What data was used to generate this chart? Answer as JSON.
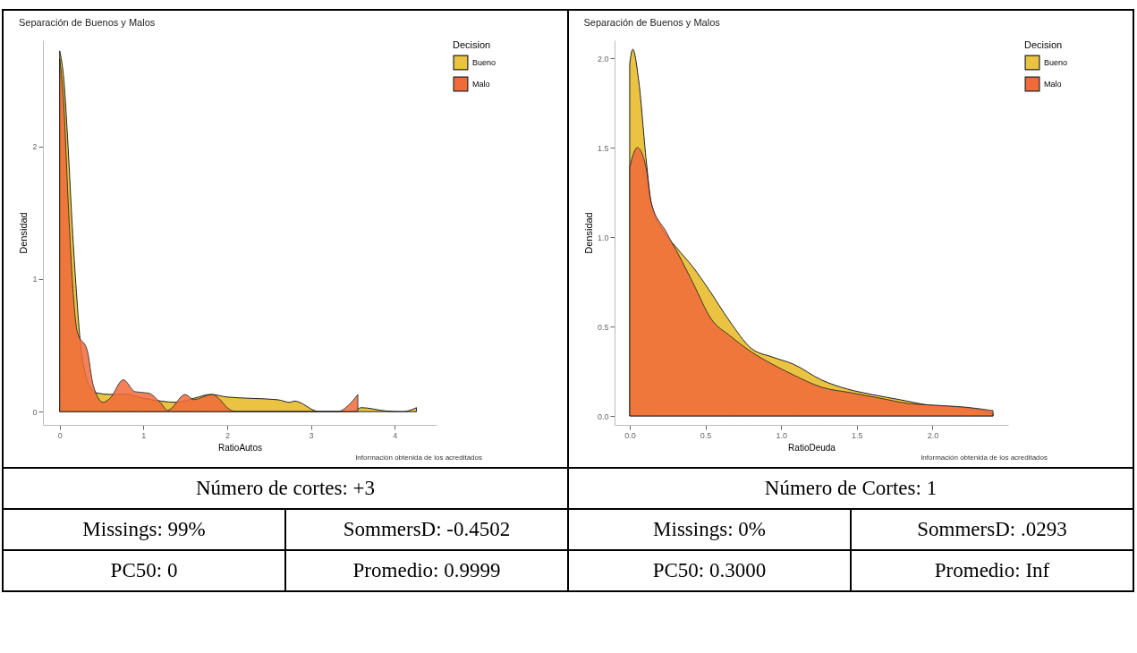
{
  "chart_data": [
    {
      "type": "area",
      "title": "Separación de Buenos y Malos",
      "xlabel": "RatioAutos",
      "ylabel": "Densidad",
      "legend_title": "Decision",
      "legend": "right",
      "grid": false,
      "xlim": [
        -0.2,
        4.5
      ],
      "xticks": [
        0,
        1,
        2,
        3,
        4
      ],
      "ylim": [
        -0.1,
        2.8
      ],
      "yticks": [
        0,
        1,
        2
      ],
      "series": [
        {
          "name": "Bueno",
          "color": "#e9c341",
          "x": [
            0,
            0.05,
            0.1,
            0.15,
            0.2,
            0.25,
            0.3,
            0.35,
            0.45,
            0.6,
            0.8,
            1.0,
            1.2,
            1.4,
            1.6,
            1.8,
            2.0,
            2.3,
            2.6,
            2.75,
            2.8,
            2.9,
            3.0,
            3.1,
            3.5,
            3.6,
            3.9,
            4.1,
            4.26
          ],
          "values": [
            2.72,
            2.5,
            2.0,
            1.4,
            0.9,
            0.5,
            0.3,
            0.2,
            0.14,
            0.13,
            0.13,
            0.1,
            0.08,
            0.07,
            0.1,
            0.13,
            0.11,
            0.1,
            0.09,
            0.07,
            0.08,
            0.06,
            0.02,
            0.0,
            0.0,
            0.03,
            0.005,
            0.0,
            0.03
          ]
        },
        {
          "name": "Malo",
          "color": "#f26a3a",
          "x": [
            0,
            0.05,
            0.1,
            0.15,
            0.21,
            0.33,
            0.4,
            0.52,
            0.6,
            0.76,
            0.9,
            1.06,
            1.2,
            1.29,
            1.5,
            1.6,
            1.82,
            1.9,
            2.0,
            2.1,
            3.0,
            3.32,
            3.45,
            3.56
          ],
          "values": [
            2.66,
            2.3,
            1.6,
            1.0,
            0.6,
            0.46,
            0.2,
            0.07,
            0.1,
            0.24,
            0.15,
            0.14,
            0.07,
            0.01,
            0.13,
            0.09,
            0.13,
            0.1,
            0.03,
            0.0,
            0.0,
            0.0,
            0.05,
            0.13
          ]
        }
      ],
      "annotations": [
        "Información obtenida de los acreditados",
        "Número de cortes: +3",
        "Missings: 99%",
        "SommersD: -0.4502",
        "PC50: 0",
        "Promedio: 0.9999"
      ]
    },
    {
      "type": "area",
      "title": "Separación de Buenos y Malos",
      "xlabel": "RatioDeuda",
      "ylabel": "Densidad",
      "legend_title": "Decision",
      "legend": "right",
      "grid": false,
      "xlim": [
        -0.1,
        2.5
      ],
      "xticks": [
        {
          "value": 0,
          "label": "0.0"
        },
        0.5,
        {
          "value": 1,
          "label": "1.0"
        },
        1.5,
        {
          "value": 2,
          "label": "2.0"
        }
      ],
      "ylim": [
        -0.05,
        2.1
      ],
      "yticks": [
        {
          "value": 0,
          "label": "0.0"
        },
        0.5,
        {
          "value": 1,
          "label": "1.0"
        },
        1.5,
        {
          "value": 2,
          "label": "2.0"
        }
      ],
      "series": [
        {
          "name": "Bueno",
          "color": "#e9c341",
          "x": [
            0,
            0.02,
            0.06,
            0.11,
            0.14,
            0.21,
            0.31,
            0.42,
            0.52,
            0.66,
            0.8,
            0.94,
            1.08,
            1.27,
            1.44,
            1.6,
            1.79,
            1.98,
            2.16,
            2.28,
            2.4
          ],
          "values": [
            1.97,
            2.05,
            1.87,
            1.42,
            1.2,
            1.05,
            0.94,
            0.83,
            0.71,
            0.53,
            0.38,
            0.33,
            0.29,
            0.2,
            0.15,
            0.12,
            0.09,
            0.06,
            0.05,
            0.04,
            0.015
          ]
        },
        {
          "name": "Malo",
          "color": "#f26a3a",
          "x": [
            0,
            0.05,
            0.11,
            0.14,
            0.24,
            0.33,
            0.42,
            0.54,
            0.66,
            0.8,
            0.94,
            1.08,
            1.27,
            1.46,
            1.65,
            1.84,
            2.02,
            2.21,
            2.4
          ],
          "values": [
            1.39,
            1.5,
            1.38,
            1.2,
            1.03,
            0.89,
            0.74,
            0.54,
            0.45,
            0.36,
            0.29,
            0.23,
            0.16,
            0.13,
            0.1,
            0.07,
            0.06,
            0.05,
            0.03
          ]
        }
      ],
      "annotations": [
        "Información obtenida de los acreditados",
        "Número de Cortes: 1",
        "Missings: 0%",
        "SommersD: .0293",
        "PC50: 0.3000",
        "Promedio: Inf"
      ]
    }
  ]
}
